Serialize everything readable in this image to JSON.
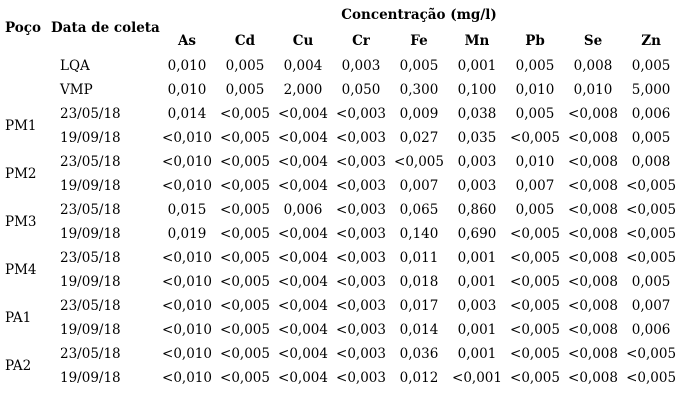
{
  "table": {
    "group_header": "Concentração (mg/l)",
    "col_poco": "Poço",
    "col_data_coleta": "Data de coleta",
    "elements": [
      "As",
      "Cd",
      "Cu",
      "Cr",
      "Fe",
      "Mn",
      "Pb",
      "Se",
      "Zn"
    ],
    "groups": [
      {
        "poco": "",
        "rows": [
          {
            "date": "LQA",
            "values": [
              "0,010",
              "0,005",
              "0,004",
              "0,003",
              "0,005",
              "0,001",
              "0,005",
              "0,008",
              "0,005"
            ]
          },
          {
            "date": "VMP",
            "values": [
              "0,010",
              "0,005",
              "2,000",
              "0,050",
              "0,300",
              "0,100",
              "0,010",
              "0,010",
              "5,000"
            ]
          }
        ]
      },
      {
        "poco": "PM1",
        "rows": [
          {
            "date": "23/05/18",
            "values": [
              "0,014",
              "<0,005",
              "<0,004",
              "<0,003",
              "0,009",
              "0,038",
              "0,005",
              "<0,008",
              "0,006"
            ]
          },
          {
            "date": "19/09/18",
            "values": [
              "<0,010",
              "<0,005",
              "<0,004",
              "<0,003",
              "0,027",
              "0,035",
              "<0,005",
              "<0,008",
              "0,005"
            ]
          }
        ]
      },
      {
        "poco": "PM2",
        "rows": [
          {
            "date": "23/05/18",
            "values": [
              "<0,010",
              "<0,005",
              "<0,004",
              "<0,003",
              "<0,005",
              "0,003",
              "0,010",
              "<0,008",
              "0,008"
            ]
          },
          {
            "date": "19/09/18",
            "values": [
              "<0,010",
              "<0,005",
              "<0,004",
              "<0,003",
              "0,007",
              "0,003",
              "0,007",
              "<0,008",
              "<0,005"
            ]
          }
        ]
      },
      {
        "poco": "PM3",
        "rows": [
          {
            "date": "23/05/18",
            "values": [
              "0,015",
              "<0,005",
              "0,006",
              "<0,003",
              "0,065",
              "0,860",
              "0,005",
              "<0,008",
              "<0,005"
            ]
          },
          {
            "date": "19/09/18",
            "values": [
              "0,019",
              "<0,005",
              "<0,004",
              "<0,003",
              "0,140",
              "0,690",
              "<0,005",
              "<0,008",
              "<0,005"
            ]
          }
        ]
      },
      {
        "poco": "PM4",
        "rows": [
          {
            "date": "23/05/18",
            "values": [
              "<0,010",
              "<0,005",
              "<0,004",
              "<0,003",
              "0,011",
              "0,001",
              "<0,005",
              "<0,008",
              "<0,005"
            ]
          },
          {
            "date": "19/09/18",
            "values": [
              "<0,010",
              "<0,005",
              "<0,004",
              "<0,003",
              "0,018",
              "0,001",
              "<0,005",
              "<0,008",
              "0,005"
            ]
          }
        ]
      },
      {
        "poco": "PA1",
        "rows": [
          {
            "date": "23/05/18",
            "values": [
              "<0,010",
              "<0,005",
              "<0,004",
              "<0,003",
              "0,017",
              "0,003",
              "<0,005",
              "<0,008",
              "0,007"
            ]
          },
          {
            "date": "19/09/18",
            "values": [
              "<0,010",
              "<0,005",
              "<0,004",
              "<0,003",
              "0,014",
              "0,001",
              "<0,005",
              "<0,008",
              "0,006"
            ]
          }
        ]
      },
      {
        "poco": "PA2",
        "rows": [
          {
            "date": "23/05/18",
            "values": [
              "<0,010",
              "<0,005",
              "<0,004",
              "<0,003",
              "0,036",
              "0,001",
              "<0,005",
              "<0,008",
              "<0,005"
            ]
          },
          {
            "date": "19/09/18",
            "values": [
              "<0,010",
              "<0,005",
              "<0,004",
              "<0,003",
              "0,012",
              "<0,001",
              "<0,005",
              "<0,008",
              "<0,005"
            ]
          }
        ]
      }
    ],
    "text_color": "#000000",
    "background_color": "#ffffff"
  }
}
